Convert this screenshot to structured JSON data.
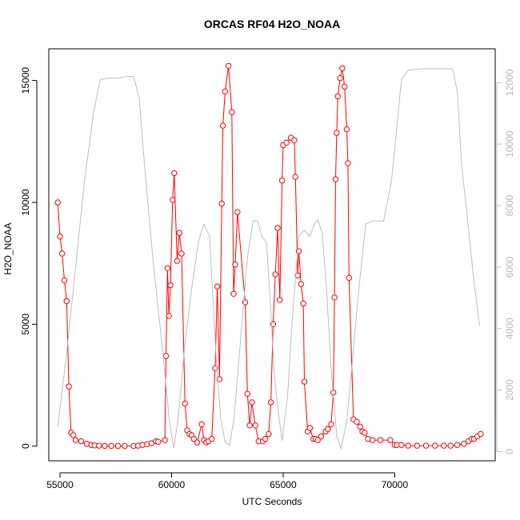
{
  "chart_data": {
    "type": "line",
    "title": "ORCAS RF04 H2O_NOAA",
    "xlabel": "UTC Seconds",
    "ylabel": "H2O_NOAA",
    "ylabel_right": "",
    "xlim": [
      54500,
      74500
    ],
    "ylim": [
      -600,
      16300
    ],
    "ylim_right": [
      -300,
      13100
    ],
    "x_ticks": [
      55000,
      60000,
      65000,
      70000
    ],
    "x_tick_labels": [
      "55000",
      "60000",
      "65000",
      "70000"
    ],
    "y_ticks": [
      0,
      5000,
      10000,
      15000
    ],
    "y_tick_labels": [
      "0",
      "5000",
      "10000",
      "15000"
    ],
    "y_right_ticks": [
      0,
      2000,
      4000,
      6000,
      8000,
      10000,
      12000
    ],
    "y_right_tick_labels": [
      "0",
      "2000",
      "4000",
      "6000",
      "8000",
      "10000",
      "12000"
    ],
    "grid": false,
    "colors": {
      "series": "#ff0000",
      "altitude": "#bebebe"
    },
    "series": [
      {
        "values": [
          [
            54900,
            10000
          ],
          [
            55000,
            8600
          ],
          [
            55100,
            7900
          ],
          [
            55200,
            6800
          ],
          [
            55300,
            5950
          ],
          [
            55400,
            2450
          ],
          [
            55500,
            550
          ],
          [
            55600,
            450
          ],
          [
            55700,
            250
          ],
          [
            55950,
            200
          ],
          [
            56200,
            100
          ],
          [
            56400,
            50
          ],
          [
            56550,
            30
          ],
          [
            56750,
            20
          ],
          [
            57000,
            10
          ],
          [
            57300,
            10
          ],
          [
            57600,
            10
          ],
          [
            57900,
            10
          ],
          [
            58300,
            10
          ],
          [
            58500,
            20
          ],
          [
            58700,
            50
          ],
          [
            58900,
            80
          ],
          [
            59100,
            120
          ],
          [
            59300,
            200
          ],
          [
            59400,
            180
          ],
          [
            59700,
            250
          ],
          [
            59750,
            3700
          ],
          [
            59820,
            7300
          ],
          [
            59880,
            5350
          ],
          [
            59950,
            6600
          ],
          [
            60050,
            10100
          ],
          [
            60120,
            11200
          ],
          [
            60250,
            7600
          ],
          [
            60350,
            8750
          ],
          [
            60450,
            7900
          ],
          [
            60600,
            1750
          ],
          [
            60700,
            650
          ],
          [
            60800,
            500
          ],
          [
            60900,
            450
          ],
          [
            61000,
            300
          ],
          [
            61150,
            150
          ],
          [
            61350,
            900
          ],
          [
            61450,
            250
          ],
          [
            61550,
            150
          ],
          [
            61650,
            200
          ],
          [
            61800,
            300
          ],
          [
            61950,
            3200
          ],
          [
            62050,
            6550
          ],
          [
            62150,
            2750
          ],
          [
            62250,
            9950
          ],
          [
            62300,
            13150
          ],
          [
            62400,
            14550
          ],
          [
            62550,
            15600
          ],
          [
            62700,
            13700
          ],
          [
            62780,
            6250
          ],
          [
            62850,
            7450
          ],
          [
            62950,
            9600
          ],
          [
            63300,
            5900
          ],
          [
            63400,
            2150
          ],
          [
            63500,
            850
          ],
          [
            63600,
            1800
          ],
          [
            63750,
            850
          ],
          [
            63900,
            200
          ],
          [
            64100,
            200
          ],
          [
            64200,
            300
          ],
          [
            64350,
            500
          ],
          [
            64450,
            1800
          ],
          [
            64550,
            5000
          ],
          [
            64650,
            7050
          ],
          [
            64750,
            8950
          ],
          [
            64850,
            6000
          ],
          [
            64950,
            10900
          ],
          [
            65000,
            12350
          ],
          [
            65150,
            12450
          ],
          [
            65350,
            12650
          ],
          [
            65500,
            12550
          ],
          [
            65550,
            11050
          ],
          [
            65650,
            7000
          ],
          [
            65700,
            8000
          ],
          [
            65800,
            6650
          ],
          [
            65900,
            5850
          ],
          [
            65950,
            2650
          ],
          [
            66100,
            600
          ],
          [
            66200,
            750
          ],
          [
            66350,
            300
          ],
          [
            66450,
            300
          ],
          [
            66550,
            250
          ],
          [
            66700,
            400
          ],
          [
            66900,
            600
          ],
          [
            67000,
            700
          ],
          [
            67150,
            900
          ],
          [
            67250,
            2200
          ],
          [
            67300,
            6100
          ],
          [
            67350,
            10950
          ],
          [
            67400,
            12850
          ],
          [
            67450,
            14350
          ],
          [
            67550,
            15100
          ],
          [
            67650,
            15500
          ],
          [
            67750,
            14750
          ],
          [
            67850,
            13000
          ],
          [
            67900,
            11600
          ],
          [
            67950,
            6900
          ],
          [
            68150,
            1100
          ],
          [
            68300,
            1000
          ],
          [
            68450,
            800
          ],
          [
            68550,
            600
          ],
          [
            68650,
            550
          ],
          [
            68800,
            300
          ],
          [
            69000,
            250
          ],
          [
            69350,
            250
          ],
          [
            69800,
            250
          ],
          [
            70000,
            50
          ],
          [
            70100,
            50
          ],
          [
            70300,
            50
          ],
          [
            70600,
            20
          ],
          [
            71000,
            20
          ],
          [
            71400,
            20
          ],
          [
            71800,
            20
          ],
          [
            72200,
            20
          ],
          [
            72500,
            20
          ],
          [
            72800,
            50
          ],
          [
            73100,
            100
          ],
          [
            73300,
            200
          ],
          [
            73450,
            300
          ],
          [
            73550,
            300
          ],
          [
            73700,
            400
          ],
          [
            73850,
            500
          ]
        ]
      },
      {
        "axis": "right",
        "values": [
          [
            54900,
            800
          ],
          [
            55300,
            3200
          ],
          [
            55700,
            6000
          ],
          [
            56100,
            8800
          ],
          [
            56500,
            11000
          ],
          [
            56800,
            12100
          ],
          [
            57200,
            12150
          ],
          [
            57600,
            12150
          ],
          [
            58000,
            12200
          ],
          [
            58300,
            12200
          ],
          [
            58550,
            11500
          ],
          [
            58800,
            9200
          ],
          [
            59200,
            6000
          ],
          [
            59600,
            3300
          ],
          [
            59900,
            1000
          ],
          [
            60100,
            100
          ],
          [
            60300,
            1100
          ],
          [
            60600,
            3500
          ],
          [
            60900,
            5300
          ],
          [
            61200,
            6800
          ],
          [
            61450,
            7400
          ],
          [
            61700,
            7000
          ],
          [
            61850,
            5000
          ],
          [
            62000,
            3000
          ],
          [
            62200,
            1100
          ],
          [
            62400,
            300
          ],
          [
            62600,
            200
          ],
          [
            62800,
            1100
          ],
          [
            63100,
            3700
          ],
          [
            63400,
            6300
          ],
          [
            63650,
            7500
          ],
          [
            63850,
            7500
          ],
          [
            64050,
            7000
          ],
          [
            64250,
            6800
          ],
          [
            64400,
            5200
          ],
          [
            64600,
            2500
          ],
          [
            64800,
            1200
          ],
          [
            64950,
            350
          ],
          [
            65200,
            1800
          ],
          [
            65400,
            4200
          ],
          [
            65700,
            7000
          ],
          [
            65950,
            7200
          ],
          [
            66200,
            7000
          ],
          [
            66400,
            7400
          ],
          [
            66550,
            7550
          ],
          [
            66750,
            7100
          ],
          [
            66950,
            5200
          ],
          [
            67150,
            2700
          ],
          [
            67400,
            500
          ],
          [
            67600,
            100
          ],
          [
            67850,
            1000
          ],
          [
            68050,
            2500
          ],
          [
            68300,
            4600
          ],
          [
            68550,
            6400
          ],
          [
            68700,
            7400
          ],
          [
            69000,
            7500
          ],
          [
            69500,
            7500
          ],
          [
            69850,
            8800
          ],
          [
            70100,
            10600
          ],
          [
            70300,
            12100
          ],
          [
            70600,
            12400
          ],
          [
            71200,
            12450
          ],
          [
            72000,
            12450
          ],
          [
            72600,
            12450
          ],
          [
            72800,
            11700
          ],
          [
            73000,
            9300
          ],
          [
            73300,
            7300
          ],
          [
            73550,
            5500
          ],
          [
            73800,
            4100
          ]
        ]
      }
    ]
  }
}
